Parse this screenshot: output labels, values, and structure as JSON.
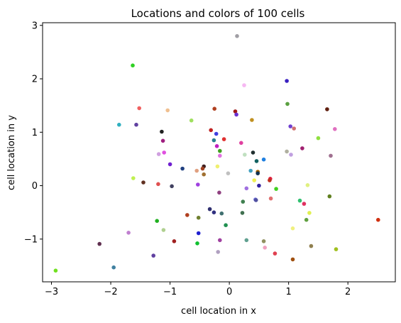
{
  "chart_data": {
    "type": "scatter",
    "title": "Locations and colors of 100 cells",
    "xlabel": "cell location in x",
    "ylabel": "cell location in y",
    "xlim": [
      -3.15,
      2.8
    ],
    "ylim": [
      -1.8,
      3.05
    ],
    "xticks": [
      -3,
      -2,
      -1,
      0,
      1,
      2
    ],
    "yticks": [
      -1,
      0,
      1,
      2,
      3
    ],
    "xtick_labels": [
      "−3",
      "−2",
      "−1",
      "0",
      "1",
      "2"
    ],
    "ytick_labels": [
      "−1",
      "0",
      "1",
      "2",
      "3"
    ],
    "grid": false,
    "points": [
      {
        "x": 0.13,
        "y": 2.8,
        "color": "#a09ea4"
      },
      {
        "x": -1.63,
        "y": 2.25,
        "color": "#2fd023"
      },
      {
        "x": 0.97,
        "y": 1.96,
        "color": "#3a20c0"
      },
      {
        "x": 0.25,
        "y": 1.88,
        "color": "#f6b8f2"
      },
      {
        "x": 0.98,
        "y": 1.53,
        "color": "#5aa040"
      },
      {
        "x": -1.52,
        "y": 1.45,
        "color": "#f06060"
      },
      {
        "x": -1.04,
        "y": 1.41,
        "color": "#f0c090"
      },
      {
        "x": -0.25,
        "y": 1.44,
        "color": "#b04020"
      },
      {
        "x": 0.1,
        "y": 1.39,
        "color": "#a01818"
      },
      {
        "x": 0.12,
        "y": 1.33,
        "color": "#6a30d0"
      },
      {
        "x": 1.65,
        "y": 1.43,
        "color": "#602010"
      },
      {
        "x": 0.38,
        "y": 1.23,
        "color": "#c09020"
      },
      {
        "x": -0.64,
        "y": 1.22,
        "color": "#a0e060"
      },
      {
        "x": -1.86,
        "y": 1.14,
        "color": "#30b0c0"
      },
      {
        "x": -1.57,
        "y": 1.14,
        "color": "#6040a0"
      },
      {
        "x": 1.03,
        "y": 1.11,
        "color": "#7040d0"
      },
      {
        "x": 1.09,
        "y": 1.07,
        "color": "#d07070"
      },
      {
        "x": 1.78,
        "y": 1.06,
        "color": "#e070c0"
      },
      {
        "x": -1.14,
        "y": 1.01,
        "color": "#202020"
      },
      {
        "x": -0.31,
        "y": 1.04,
        "color": "#c02020"
      },
      {
        "x": -0.22,
        "y": 0.97,
        "color": "#4040e0"
      },
      {
        "x": 1.5,
        "y": 0.89,
        "color": "#90e040"
      },
      {
        "x": -0.26,
        "y": 0.85,
        "color": "#2a8090"
      },
      {
        "x": -0.09,
        "y": 0.87,
        "color": "#e03030"
      },
      {
        "x": -1.12,
        "y": 0.84,
        "color": "#a02080"
      },
      {
        "x": 0.2,
        "y": 0.8,
        "color": "#e040a0"
      },
      {
        "x": -0.21,
        "y": 0.74,
        "color": "#c020c0"
      },
      {
        "x": 1.23,
        "y": 0.7,
        "color": "#a02070"
      },
      {
        "x": -0.16,
        "y": 0.65,
        "color": "#40a020"
      },
      {
        "x": 0.97,
        "y": 0.64,
        "color": "#b0b0a0"
      },
      {
        "x": 0.4,
        "y": 0.62,
        "color": "#203030"
      },
      {
        "x": -1.1,
        "y": 0.62,
        "color": "#e050e0"
      },
      {
        "x": -1.19,
        "y": 0.59,
        "color": "#d0a0e0"
      },
      {
        "x": 1.04,
        "y": 0.58,
        "color": "#c0a0e0"
      },
      {
        "x": 0.26,
        "y": 0.58,
        "color": "#c0e0c0"
      },
      {
        "x": -0.16,
        "y": 0.56,
        "color": "#e070e0"
      },
      {
        "x": 1.71,
        "y": 0.56,
        "color": "#a07090"
      },
      {
        "x": 0.58,
        "y": 0.49,
        "color": "#2080e0"
      },
      {
        "x": 0.46,
        "y": 0.46,
        "color": "#106060"
      },
      {
        "x": -1.0,
        "y": 0.4,
        "color": "#7020d0"
      },
      {
        "x": -0.43,
        "y": 0.36,
        "color": "#402020"
      },
      {
        "x": -0.2,
        "y": 0.36,
        "color": "#f0f070"
      },
      {
        "x": -0.45,
        "y": 0.32,
        "color": "#a04020"
      },
      {
        "x": -0.79,
        "y": 0.32,
        "color": "#204080"
      },
      {
        "x": -0.55,
        "y": 0.28,
        "color": "#e0a080"
      },
      {
        "x": 0.36,
        "y": 0.28,
        "color": "#40a0c0"
      },
      {
        "x": 0.48,
        "y": 0.26,
        "color": "#a06000"
      },
      {
        "x": 0.48,
        "y": 0.23,
        "color": "#103050"
      },
      {
        "x": -0.02,
        "y": 0.23,
        "color": "#c0c0c0"
      },
      {
        "x": -0.43,
        "y": 0.21,
        "color": "#a07030"
      },
      {
        "x": -1.62,
        "y": 0.14,
        "color": "#c0f050"
      },
      {
        "x": 0.69,
        "y": 0.13,
        "color": "#e02040"
      },
      {
        "x": 0.68,
        "y": 0.1,
        "color": "#c03020"
      },
      {
        "x": 0.42,
        "y": 0.1,
        "color": "#f0f050"
      },
      {
        "x": -1.45,
        "y": 0.06,
        "color": "#603020"
      },
      {
        "x": -1.2,
        "y": 0.03,
        "color": "#e05050"
      },
      {
        "x": -0.53,
        "y": 0.02,
        "color": "#a040e0"
      },
      {
        "x": -0.97,
        "y": -0.01,
        "color": "#404060"
      },
      {
        "x": 0.5,
        "y": 0.0,
        "color": "#3020a0"
      },
      {
        "x": 1.32,
        "y": 0.01,
        "color": "#e0f080"
      },
      {
        "x": 0.29,
        "y": -0.05,
        "color": "#a070e0"
      },
      {
        "x": 0.79,
        "y": -0.06,
        "color": "#40d020"
      },
      {
        "x": -0.17,
        "y": -0.13,
        "color": "#904080"
      },
      {
        "x": 1.69,
        "y": -0.2,
        "color": "#608020"
      },
      {
        "x": 0.7,
        "y": -0.24,
        "color": "#e07070"
      },
      {
        "x": 0.44,
        "y": -0.26,
        "color": "#7070e0"
      },
      {
        "x": 0.45,
        "y": -0.27,
        "color": "#5050a0"
      },
      {
        "x": 1.19,
        "y": -0.28,
        "color": "#30c070"
      },
      {
        "x": 0.23,
        "y": -0.3,
        "color": "#408050"
      },
      {
        "x": 1.26,
        "y": -0.34,
        "color": "#e03060"
      },
      {
        "x": -0.33,
        "y": -0.44,
        "color": "#303070"
      },
      {
        "x": -0.26,
        "y": -0.5,
        "color": "#303080"
      },
      {
        "x": -0.13,
        "y": -0.52,
        "color": "#407070"
      },
      {
        "x": 0.22,
        "y": -0.51,
        "color": "#407050"
      },
      {
        "x": 1.35,
        "y": -0.51,
        "color": "#e0f050"
      },
      {
        "x": -0.71,
        "y": -0.55,
        "color": "#b04020"
      },
      {
        "x": -0.52,
        "y": -0.6,
        "color": "#708030"
      },
      {
        "x": 2.51,
        "y": -0.64,
        "color": "#d03010"
      },
      {
        "x": 1.3,
        "y": -0.64,
        "color": "#60a040"
      },
      {
        "x": -1.22,
        "y": -0.66,
        "color": "#20b020"
      },
      {
        "x": -0.06,
        "y": -0.74,
        "color": "#209050"
      },
      {
        "x": -1.11,
        "y": -0.83,
        "color": "#b0d090"
      },
      {
        "x": 1.07,
        "y": -0.8,
        "color": "#f0f080"
      },
      {
        "x": -1.7,
        "y": -0.88,
        "color": "#c080d0"
      },
      {
        "x": -0.52,
        "y": -0.89,
        "color": "#2020d0"
      },
      {
        "x": 0.29,
        "y": -1.02,
        "color": "#60a090"
      },
      {
        "x": -0.16,
        "y": -1.02,
        "color": "#a040a0"
      },
      {
        "x": -0.93,
        "y": -1.04,
        "color": "#a02020"
      },
      {
        "x": 0.58,
        "y": -1.04,
        "color": "#909060"
      },
      {
        "x": -0.54,
        "y": -1.08,
        "color": "#10c030"
      },
      {
        "x": -2.19,
        "y": -1.09,
        "color": "#603050"
      },
      {
        "x": 1.38,
        "y": -1.13,
        "color": "#908050"
      },
      {
        "x": 0.6,
        "y": -1.16,
        "color": "#f0a0c0"
      },
      {
        "x": 1.8,
        "y": -1.19,
        "color": "#a0c020"
      },
      {
        "x": -0.19,
        "y": -1.24,
        "color": "#b0a0c0"
      },
      {
        "x": 0.77,
        "y": -1.27,
        "color": "#e04050"
      },
      {
        "x": -1.28,
        "y": -1.31,
        "color": "#6040a0"
      },
      {
        "x": 1.07,
        "y": -1.38,
        "color": "#a05010"
      },
      {
        "x": -1.95,
        "y": -1.53,
        "color": "#4080a0"
      },
      {
        "x": -2.93,
        "y": -1.59,
        "color": "#70e020"
      }
    ]
  }
}
